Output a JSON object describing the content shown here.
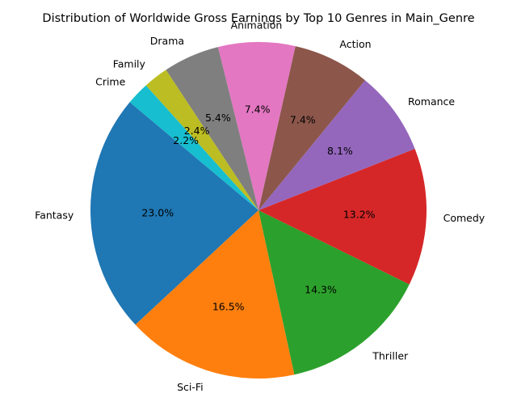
{
  "chart_data": {
    "type": "pie",
    "title": "Distribution of Worldwide Gross Earnings by Top 10 Genres in Main_Genre",
    "start_angle_deg": 140,
    "direction": "counterclockwise",
    "slices": [
      {
        "label": "Fantasy",
        "value": 23.0,
        "pct_label": "23.0%",
        "color": "#1f77b4"
      },
      {
        "label": "Sci-Fi",
        "value": 16.5,
        "pct_label": "16.5%",
        "color": "#ff7f0e"
      },
      {
        "label": "Thriller",
        "value": 14.3,
        "pct_label": "14.3%",
        "color": "#2ca02c"
      },
      {
        "label": "Comedy",
        "value": 13.2,
        "pct_label": "13.2%",
        "color": "#d62728"
      },
      {
        "label": "Romance",
        "value": 8.1,
        "pct_label": "8.1%",
        "color": "#9467bd"
      },
      {
        "label": "Action",
        "value": 7.4,
        "pct_label": "7.4%",
        "color": "#8c564b"
      },
      {
        "label": "Animation",
        "value": 7.4,
        "pct_label": "7.4%",
        "color": "#e377c2"
      },
      {
        "label": "Drama",
        "value": 5.4,
        "pct_label": "5.4%",
        "color": "#7f7f7f"
      },
      {
        "label": "Family",
        "value": 2.4,
        "pct_label": "2.4%",
        "color": "#bcbd22"
      },
      {
        "label": "Crime",
        "value": 2.2,
        "pct_label": "2.2%",
        "color": "#17becf"
      }
    ]
  }
}
